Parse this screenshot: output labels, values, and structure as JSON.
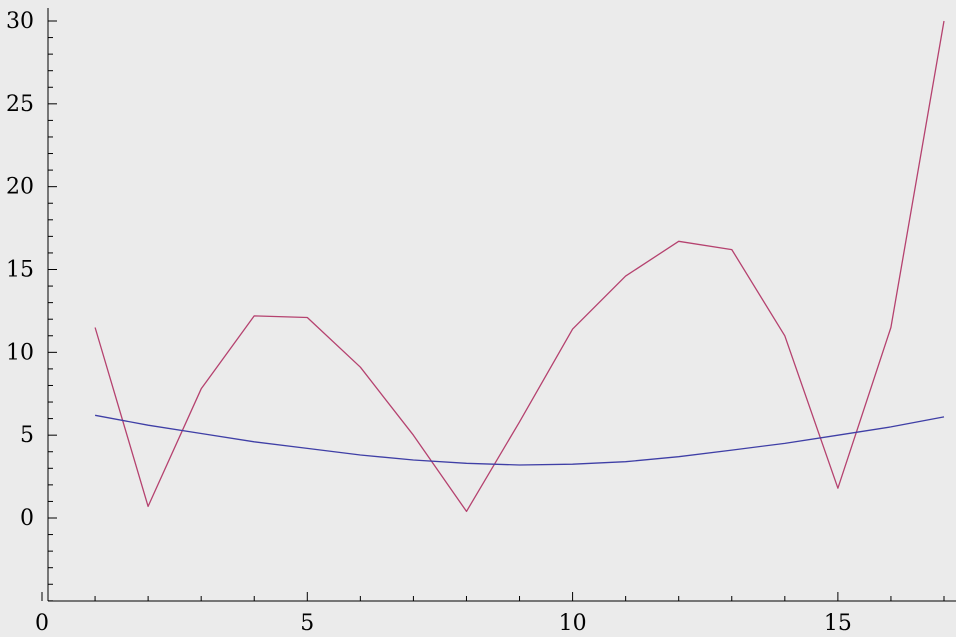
{
  "chart_data": {
    "type": "line",
    "title": "",
    "xlabel": "",
    "ylabel": "",
    "xlim": [
      0,
      17.2
    ],
    "ylim": [
      -5,
      30
    ],
    "x_ticks": [
      0,
      5,
      10,
      15
    ],
    "y_ticks": [
      0,
      5,
      10,
      15,
      20,
      25,
      30
    ],
    "grid": false,
    "legend": "none",
    "background": "#ebebeb",
    "series": [
      {
        "color": "#b5426f",
        "x": [
          1,
          2,
          3,
          4,
          5,
          6,
          7,
          8,
          9,
          10,
          11,
          12,
          13,
          14,
          15,
          16,
          17
        ],
        "values": [
          11.5,
          0.7,
          7.8,
          12.2,
          12.1,
          9.1,
          5.0,
          0.4,
          5.8,
          11.4,
          14.6,
          16.7,
          16.2,
          11.0,
          1.8,
          11.5,
          30.0
        ]
      },
      {
        "color": "#3f3fa6",
        "x": [
          1,
          2,
          3,
          4,
          5,
          6,
          7,
          8,
          9,
          10,
          11,
          12,
          13,
          14,
          15,
          16,
          17
        ],
        "values": [
          6.2,
          5.6,
          5.1,
          4.6,
          4.2,
          3.8,
          3.5,
          3.3,
          3.2,
          3.25,
          3.4,
          3.7,
          4.1,
          4.5,
          5.0,
          5.5,
          6.1
        ]
      }
    ]
  }
}
